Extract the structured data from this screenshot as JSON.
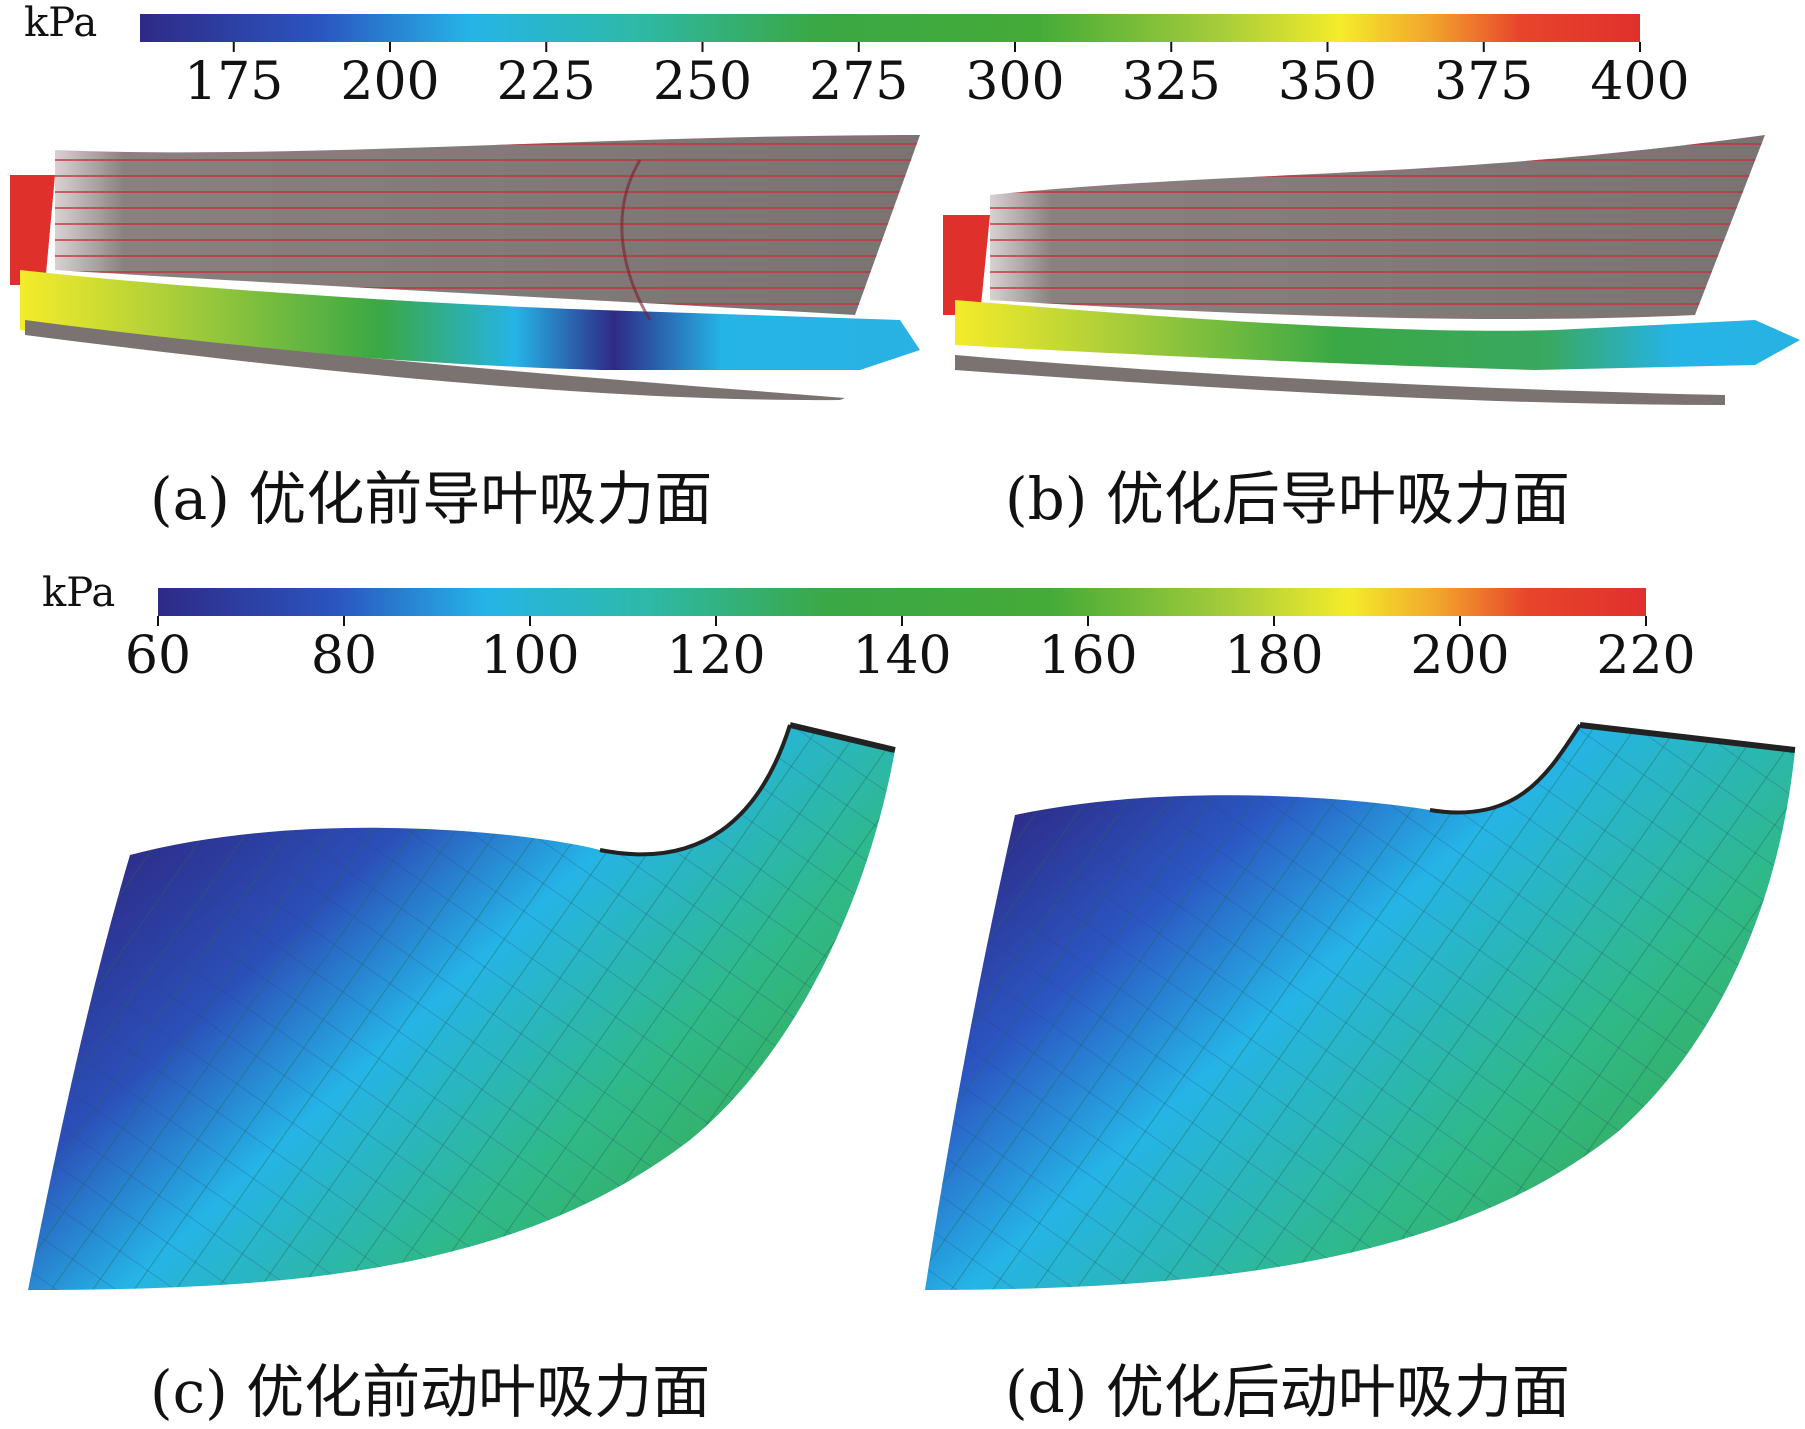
{
  "colorbar_top": {
    "unit": "kPa",
    "ticks": [
      "175",
      "200",
      "225",
      "250",
      "275",
      "300",
      "325",
      "350",
      "375",
      "400"
    ],
    "min": 160,
    "max": 400
  },
  "colorbar_bottom": {
    "unit": "kPa",
    "ticks": [
      "60",
      "80",
      "100",
      "120",
      "140",
      "160",
      "180",
      "200",
      "220"
    ],
    "min": 60,
    "max": 220
  },
  "colormap": [
    "#2e2a86",
    "#2b6fd0",
    "#25b4e6",
    "#2fb98a",
    "#3aa845",
    "#4caf3a",
    "#a6cc3a",
    "#f4ec2a",
    "#f2a52c",
    "#e8452c",
    "#e0302c"
  ],
  "panels": {
    "a": {
      "caption": "(a) 优化前导叶吸力面"
    },
    "b": {
      "caption": "(b) 优化后导叶吸力面"
    },
    "c": {
      "caption": "(c) 优化前动叶吸力面"
    },
    "d": {
      "caption": "(d) 优化后动叶吸力面"
    }
  }
}
